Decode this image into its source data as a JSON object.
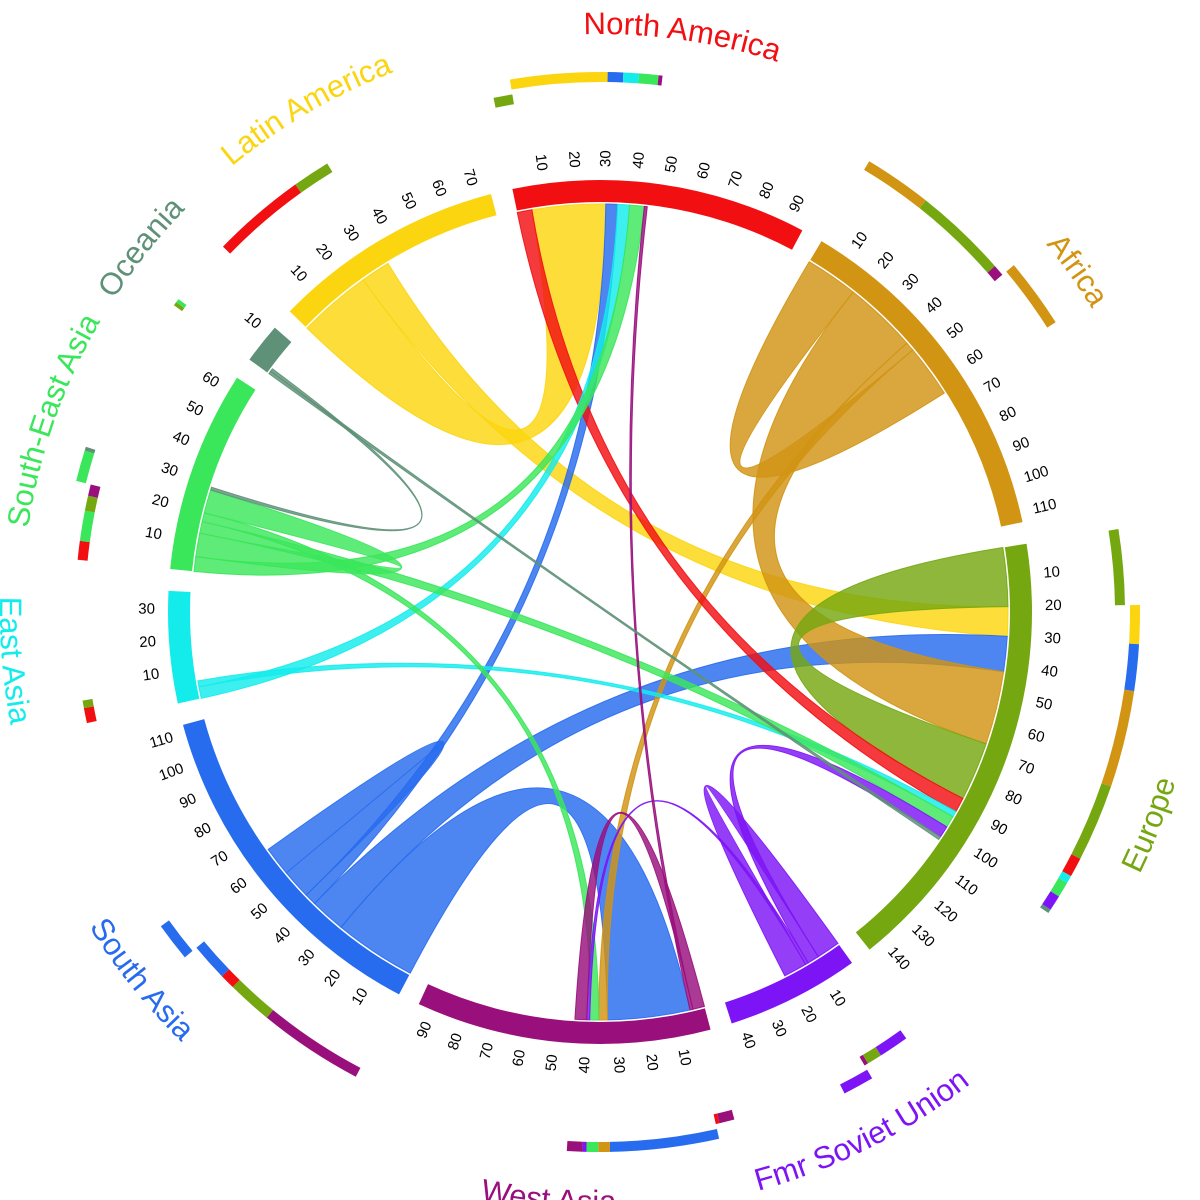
{
  "chart_data": {
    "type": "chord",
    "title": "",
    "total_gap_units": 70,
    "regions": [
      {
        "id": "north-america",
        "name": "North America",
        "color": "#f10f12",
        "size": 95,
        "tick_step": 10,
        "tick_max": 90
      },
      {
        "id": "africa",
        "name": "Africa",
        "color": "#d19413",
        "size": 113,
        "tick_step": 10,
        "tick_max": 110
      },
      {
        "id": "europe",
        "name": "Europe",
        "color": "#75a711",
        "size": 145,
        "tick_step": 10,
        "tick_max": 140
      },
      {
        "id": "fmr-soviet-union",
        "name": "Fmr Soviet Union",
        "color": "#7c14f5",
        "size": 43,
        "tick_step": 10,
        "tick_max": 40
      },
      {
        "id": "west-asia",
        "name": "West Asia",
        "color": "#990f7c",
        "size": 95,
        "tick_step": 10,
        "tick_max": 90
      },
      {
        "id": "south-asia",
        "name": "South Asia",
        "color": "#276bee",
        "size": 113,
        "tick_step": 10,
        "tick_max": 110
      },
      {
        "id": "east-asia",
        "name": "East Asia",
        "color": "#14ecec",
        "size": 36,
        "tick_step": 10,
        "tick_max": 30
      },
      {
        "id": "south-east-asia",
        "name": "South-East Asia",
        "color": "#3ae65a",
        "size": 65,
        "tick_step": 10,
        "tick_max": 60
      },
      {
        "id": "oceania",
        "name": "Oceania",
        "color": "#5e9178",
        "size": 13,
        "tick_step": 10,
        "tick_max": 10
      },
      {
        "id": "latin-america",
        "name": "Latin America",
        "color": "#fbd50f",
        "size": 75,
        "tick_step": 10,
        "tick_max": 70
      }
    ],
    "flows": [
      {
        "from": "latin-america",
        "to": "north-america",
        "value": 25
      },
      {
        "from": "latin-america",
        "to": "europe",
        "value": 10
      },
      {
        "from": "south-asia",
        "to": "west-asia",
        "value": 28
      },
      {
        "from": "south-asia",
        "to": "europe",
        "value": 12
      },
      {
        "from": "south-asia",
        "to": "north-america",
        "value": 4
      },
      {
        "from": "south-asia",
        "to": "south-asia",
        "value": 10
      },
      {
        "from": "africa",
        "to": "africa",
        "value": 18
      },
      {
        "from": "africa",
        "to": "europe",
        "value": 25
      },
      {
        "from": "africa",
        "to": "west-asia",
        "value": 3
      },
      {
        "from": "europe",
        "to": "europe",
        "value": 20
      },
      {
        "from": "north-america",
        "to": "europe",
        "value": 5
      },
      {
        "from": "east-asia",
        "to": "north-america",
        "value": 4
      },
      {
        "from": "east-asia",
        "to": "europe",
        "value": 2
      },
      {
        "from": "south-east-asia",
        "to": "north-america",
        "value": 5
      },
      {
        "from": "south-east-asia",
        "to": "south-east-asia",
        "value": 8
      },
      {
        "from": "south-east-asia",
        "to": "europe",
        "value": 4
      },
      {
        "from": "south-east-asia",
        "to": "west-asia",
        "value": 3
      },
      {
        "from": "fmr-soviet-union",
        "to": "fmr-soviet-union",
        "value": 8
      },
      {
        "from": "fmr-soviet-union",
        "to": "europe",
        "value": 4
      },
      {
        "from": "fmr-soviet-union",
        "to": "west-asia",
        "value": 1
      },
      {
        "from": "west-asia",
        "to": "west-asia",
        "value": 4
      },
      {
        "from": "west-asia",
        "to": "north-america",
        "value": 1
      },
      {
        "from": "oceania",
        "to": "europe",
        "value": 1
      },
      {
        "from": "oceania",
        "to": "south-east-asia",
        "value": 1
      }
    ]
  }
}
